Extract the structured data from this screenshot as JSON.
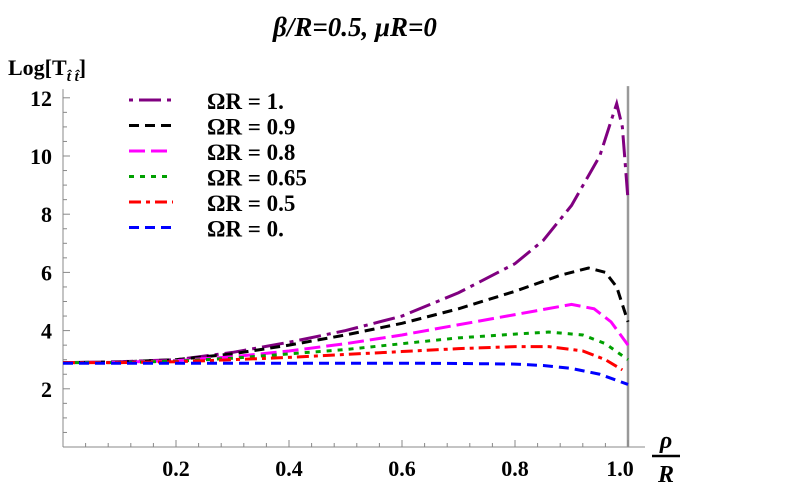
{
  "chart_data": {
    "type": "line",
    "title": "β/R=0.5, μR=0",
    "ylabel": "Log[T t̂ t̂]",
    "ylabel_base": "Log[T",
    "ylabel_sub": "t̂ t̂",
    "ylabel_close": "]",
    "xlabel_num": "ρ",
    "xlabel_den": "R",
    "xlim": [
      0,
      1.0
    ],
    "ylim": [
      0,
      12.3
    ],
    "xticks": [
      0.2,
      0.4,
      0.6,
      0.8,
      1.0
    ],
    "xtick_labels": [
      "0.2",
      "0.4",
      "0.6",
      "0.8",
      "1.0"
    ],
    "yticks": [
      2,
      4,
      6,
      8,
      10,
      12
    ],
    "ytick_labels": [
      "2",
      "4",
      "6",
      "8",
      "10",
      "12"
    ],
    "grid": false,
    "vertical_line_x": 1.0,
    "legend_placement": "top-left",
    "series": [
      {
        "name": "ΩR = 1.",
        "color": "#800080",
        "dash": "dashdot-long",
        "x": [
          0,
          0.1,
          0.2,
          0.3,
          0.4,
          0.5,
          0.6,
          0.7,
          0.8,
          0.85,
          0.9,
          0.95,
          0.98,
          0.99,
          1.0
        ],
        "y": [
          2.9,
          2.93,
          3.0,
          3.25,
          3.6,
          4.0,
          4.5,
          5.3,
          6.3,
          7.1,
          8.3,
          10.0,
          11.8,
          11.0,
          8.5
        ]
      },
      {
        "name": "ΩR = 0.9",
        "color": "#000000",
        "dash": "dashed",
        "x": [
          0,
          0.1,
          0.2,
          0.3,
          0.4,
          0.5,
          0.6,
          0.7,
          0.8,
          0.88,
          0.93,
          0.96,
          0.98,
          1.0
        ],
        "y": [
          2.9,
          2.92,
          3.0,
          3.2,
          3.5,
          3.85,
          4.25,
          4.75,
          5.35,
          5.9,
          6.15,
          6.0,
          5.5,
          4.3
        ]
      },
      {
        "name": "ΩR = 0.8",
        "color": "#ff00ff",
        "dash": "long-dashed",
        "x": [
          0,
          0.1,
          0.2,
          0.3,
          0.4,
          0.5,
          0.6,
          0.7,
          0.8,
          0.9,
          0.94,
          0.97,
          1.0
        ],
        "y": [
          2.9,
          2.91,
          2.97,
          3.1,
          3.3,
          3.55,
          3.85,
          4.2,
          4.55,
          4.9,
          4.75,
          4.3,
          3.5
        ]
      },
      {
        "name": "ΩR = 0.65",
        "color": "#00a000",
        "dash": "dotted",
        "x": [
          0,
          0.1,
          0.2,
          0.3,
          0.4,
          0.5,
          0.6,
          0.7,
          0.8,
          0.86,
          0.92,
          0.96,
          1.0
        ],
        "y": [
          2.9,
          2.9,
          2.95,
          3.05,
          3.2,
          3.35,
          3.55,
          3.75,
          3.88,
          3.95,
          3.85,
          3.55,
          3.0
        ]
      },
      {
        "name": "ΩR = 0.5",
        "color": "#ff0000",
        "dash": "dashdot",
        "x": [
          0,
          0.1,
          0.2,
          0.3,
          0.4,
          0.5,
          0.6,
          0.7,
          0.8,
          0.86,
          0.92,
          0.96,
          0.99
        ],
        "y": [
          2.9,
          2.9,
          2.93,
          3.0,
          3.08,
          3.18,
          3.28,
          3.38,
          3.45,
          3.45,
          3.3,
          3.0,
          2.65
        ]
      },
      {
        "name": "ΩR = 0.",
        "color": "#0000ff",
        "dash": "dashed",
        "x": [
          0,
          0.2,
          0.4,
          0.6,
          0.7,
          0.8,
          0.85,
          0.9,
          0.95,
          1.0
        ],
        "y": [
          2.88,
          2.88,
          2.88,
          2.88,
          2.87,
          2.85,
          2.8,
          2.7,
          2.5,
          2.15
        ]
      }
    ]
  }
}
